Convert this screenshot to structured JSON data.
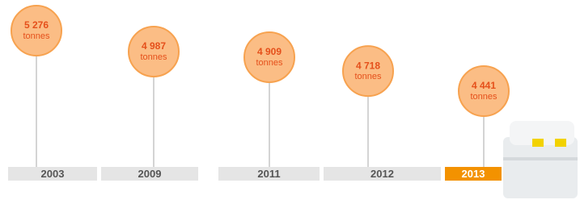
{
  "chart_data": {
    "type": "lollipop",
    "categories": [
      "2003",
      "2009",
      "2011",
      "2012",
      "2013"
    ],
    "values": [
      5276,
      4987,
      4909,
      4718,
      4441
    ],
    "value_labels": [
      "5 276",
      "4 987",
      "4 909",
      "4 718",
      "4 441"
    ],
    "unit": "tonnes",
    "color": "#fbbd85",
    "band_colors": [
      "#e5e5e5",
      "#e5e5e5",
      "#e5e5e5",
      "#e5e5e5",
      "#f39200"
    ]
  }
}
